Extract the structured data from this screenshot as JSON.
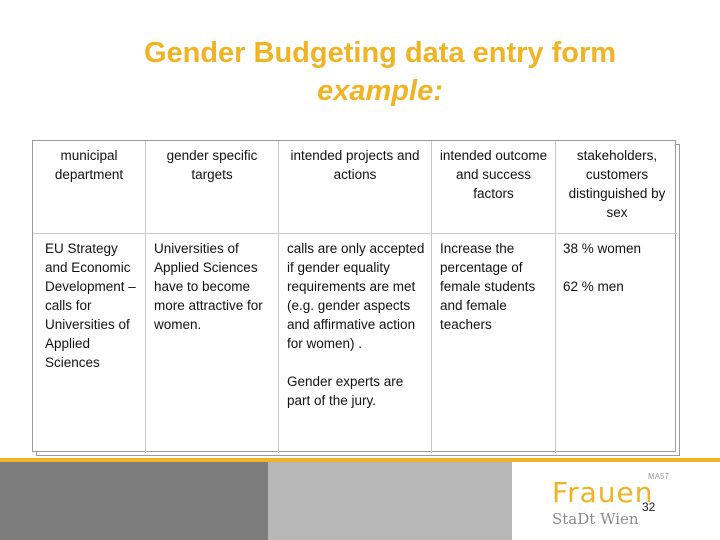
{
  "slide": {
    "title": "Gender Budgeting data entry form",
    "subtitle": "example:",
    "page_number": "32"
  },
  "table": {
    "headers": [
      "municipal department",
      "gender specific targets",
      "intended projects and actions",
      "intended outcome and success factors",
      "stakeholders, customers distinguished by sex"
    ],
    "row": {
      "department": "EU Strategy and Economic Development – calls for Universities of Applied Sciences",
      "targets": "Universities of Applied Sciences have to become more attractive for women.",
      "actions_1": "calls are only accepted if gender equality requirements are met (e.g. gender aspects and affirmative action for women) .",
      "actions_2": "Gender experts are part of the jury.",
      "outcome": "Increase the percentage of female students and female teachers",
      "stakeholders_1": "38 % women",
      "stakeholders_2": "62 % men"
    }
  },
  "logo": {
    "main": "Frauen",
    "superscript": "MA57",
    "sub": "StaDt Wien"
  },
  "colors": {
    "accent": "#f0b323",
    "dark_bar": "#7d7d7d",
    "light_bar": "#b7b7b7"
  }
}
